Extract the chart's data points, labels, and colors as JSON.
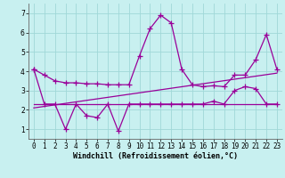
{
  "background_color": "#c8f0f0",
  "grid_color": "#a0d8d8",
  "line_color": "#990099",
  "marker_style": "+",
  "marker_size": 4,
  "linewidth": 0.9,
  "xlabel": "Windchill (Refroidissement éolien,°C)",
  "xlabel_fontsize": 6.0,
  "tick_fontsize": 5.5,
  "xlim": [
    -0.5,
    23.5
  ],
  "ylim": [
    0.5,
    7.5
  ],
  "yticks": [
    1,
    2,
    3,
    4,
    5,
    6,
    7
  ],
  "xticks": [
    0,
    1,
    2,
    3,
    4,
    5,
    6,
    7,
    8,
    9,
    10,
    11,
    12,
    13,
    14,
    15,
    16,
    17,
    18,
    19,
    20,
    21,
    22,
    23
  ],
  "series": [
    {
      "x": [
        0,
        1,
        2,
        3,
        4,
        5,
        6,
        7,
        8,
        9,
        10,
        11,
        12,
        13,
        14,
        15,
        16,
        17,
        18,
        19,
        20,
        21,
        22,
        23
      ],
      "y": [
        4.1,
        3.8,
        3.5,
        3.4,
        3.4,
        3.35,
        3.35,
        3.3,
        3.3,
        3.3,
        4.8,
        6.2,
        6.9,
        6.5,
        4.1,
        3.3,
        3.2,
        3.25,
        3.2,
        3.8,
        3.8,
        4.6,
        5.9,
        4.1
      ]
    },
    {
      "x": [
        0,
        1,
        2,
        3,
        4,
        5,
        6,
        7,
        8,
        9,
        10,
        11,
        12,
        13,
        14,
        15,
        16,
        17,
        18,
        19,
        20,
        21,
        22,
        23
      ],
      "y": [
        4.1,
        2.3,
        2.3,
        1.0,
        2.3,
        1.7,
        1.6,
        2.3,
        0.9,
        2.3,
        2.3,
        2.3,
        2.3,
        2.3,
        2.3,
        2.3,
        2.3,
        2.45,
        2.3,
        3.0,
        3.2,
        3.1,
        2.3,
        2.3
      ]
    },
    {
      "x": [
        0,
        23
      ],
      "y": [
        2.1,
        3.9
      ]
    },
    {
      "x": [
        0,
        23
      ],
      "y": [
        2.3,
        2.3
      ]
    }
  ]
}
